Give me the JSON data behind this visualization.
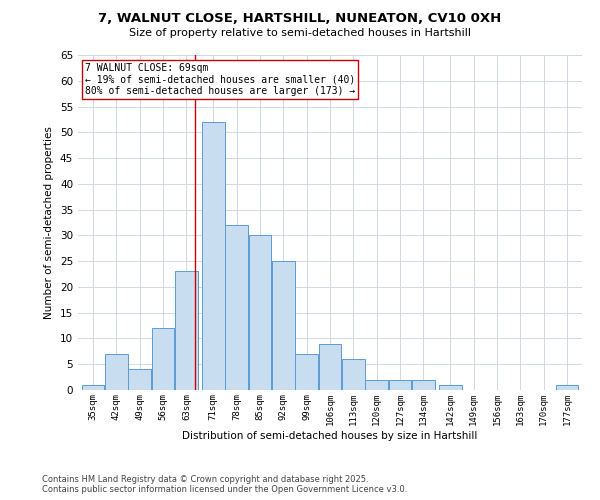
{
  "title1": "7, WALNUT CLOSE, HARTSHILL, NUNEATON, CV10 0XH",
  "title2": "Size of property relative to semi-detached houses in Hartshill",
  "xlabel": "Distribution of semi-detached houses by size in Hartshill",
  "ylabel": "Number of semi-detached properties",
  "bins": [
    35,
    42,
    49,
    56,
    63,
    71,
    78,
    85,
    92,
    99,
    106,
    113,
    120,
    127,
    134,
    142,
    149,
    156,
    163,
    170,
    177
  ],
  "counts": [
    1,
    7,
    4,
    12,
    23,
    52,
    32,
    30,
    25,
    7,
    9,
    6,
    2,
    2,
    2,
    1,
    0,
    0,
    0,
    0,
    1
  ],
  "bar_color": "#c9ddf0",
  "bar_edge_color": "#5b9bd5",
  "property_value": 69,
  "annotation_title": "7 WALNUT CLOSE: 69sqm",
  "annotation_line1": "← 19% of semi-detached houses are smaller (40)",
  "annotation_line2": "80% of semi-detached houses are larger (173) →",
  "annotation_box_color": "#ffffff",
  "annotation_box_edge": "#cc0000",
  "vline_color": "#cc0000",
  "ylim": [
    0,
    65
  ],
  "yticks": [
    0,
    5,
    10,
    15,
    20,
    25,
    30,
    35,
    40,
    45,
    50,
    55,
    60,
    65
  ],
  "bg_color": "#ffffff",
  "grid_color": "#d0d8e8",
  "footnote1": "Contains HM Land Registry data © Crown copyright and database right 2025.",
  "footnote2": "Contains public sector information licensed under the Open Government Licence v3.0."
}
